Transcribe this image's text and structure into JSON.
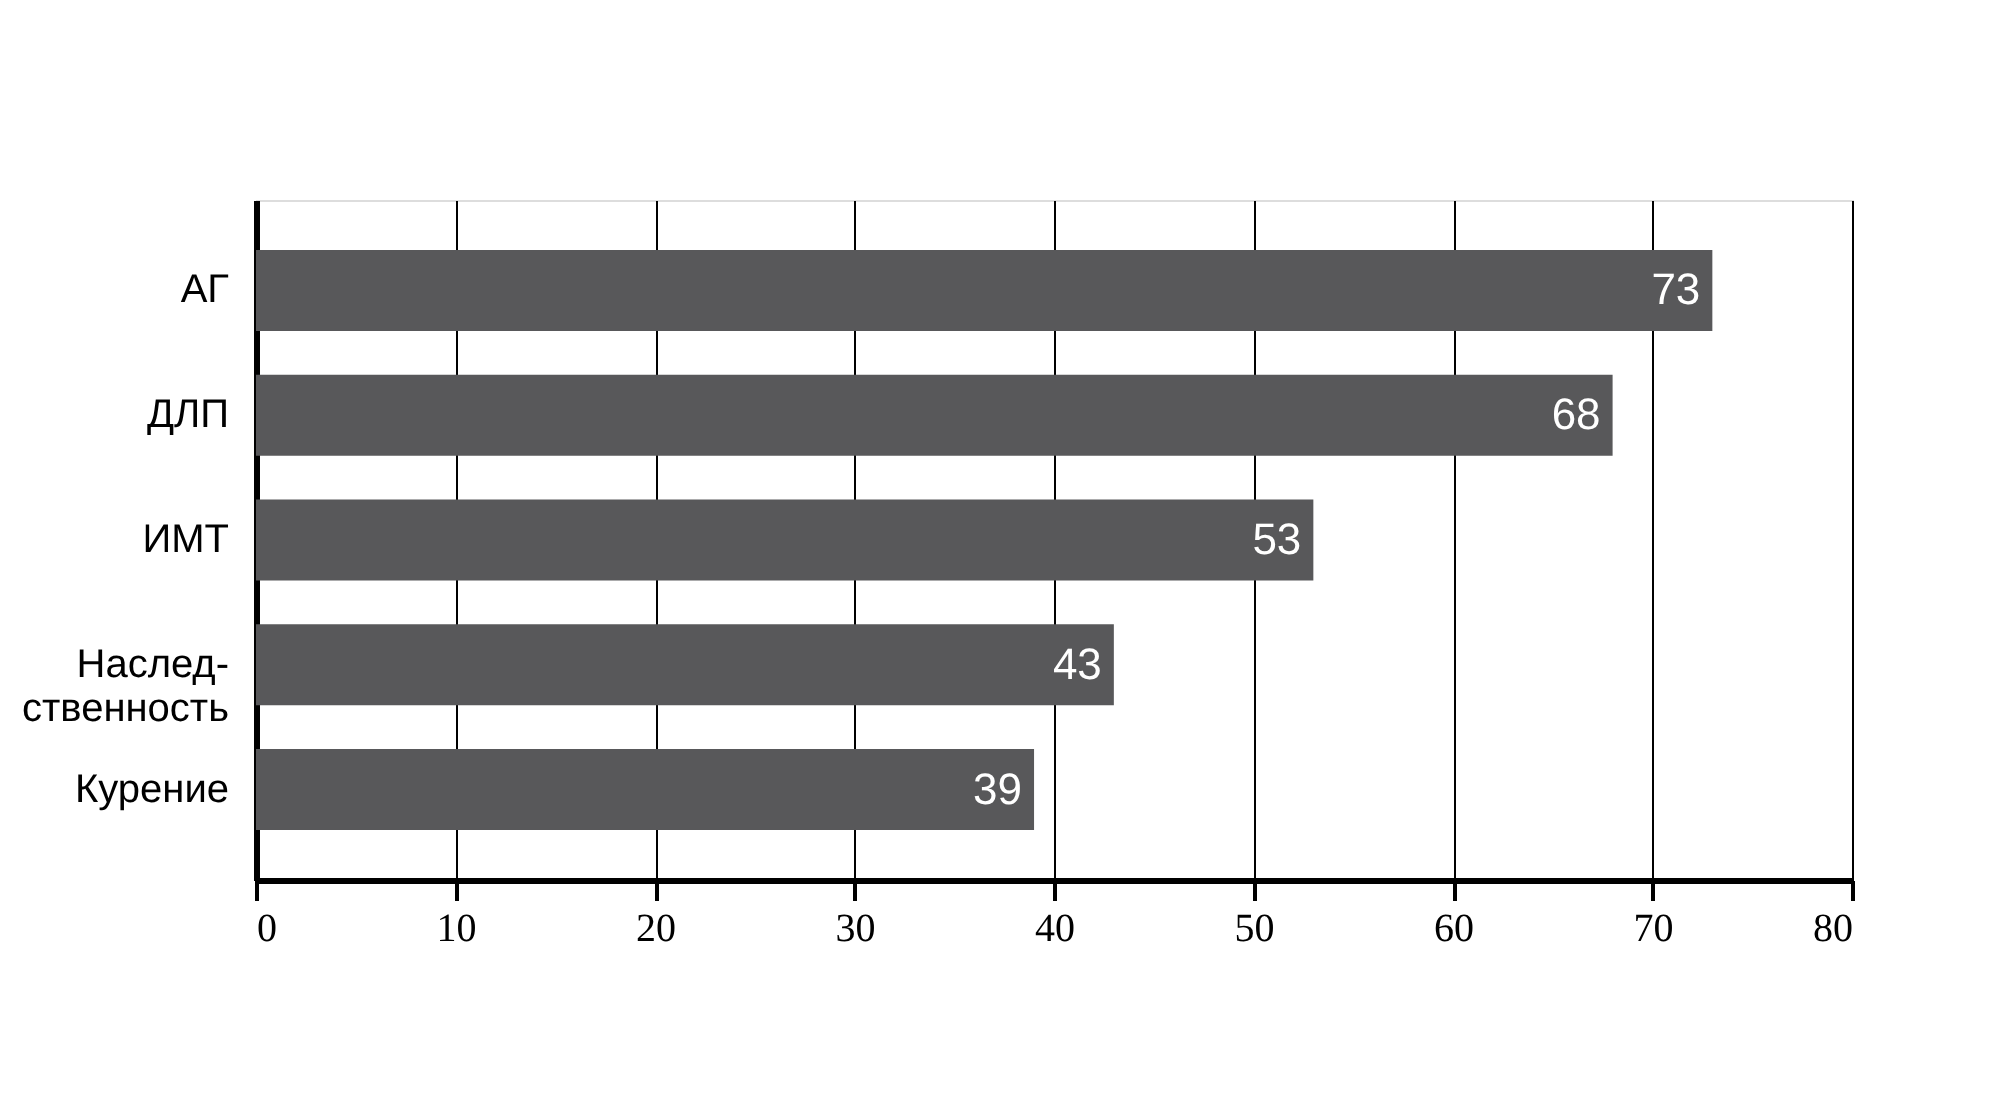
{
  "chart_data": {
    "type": "bar",
    "orientation": "horizontal",
    "categories": [
      "АГ",
      "ДЛП",
      "ИМТ",
      "Наслед-\nственность",
      "Курение"
    ],
    "values": [
      73,
      68,
      53,
      43,
      39
    ],
    "color": "#58585a",
    "xlim": [
      0,
      80
    ],
    "xticks": [
      0,
      10,
      20,
      30,
      40,
      50,
      60,
      70,
      80
    ],
    "grid": "x",
    "data_labels": true
  }
}
